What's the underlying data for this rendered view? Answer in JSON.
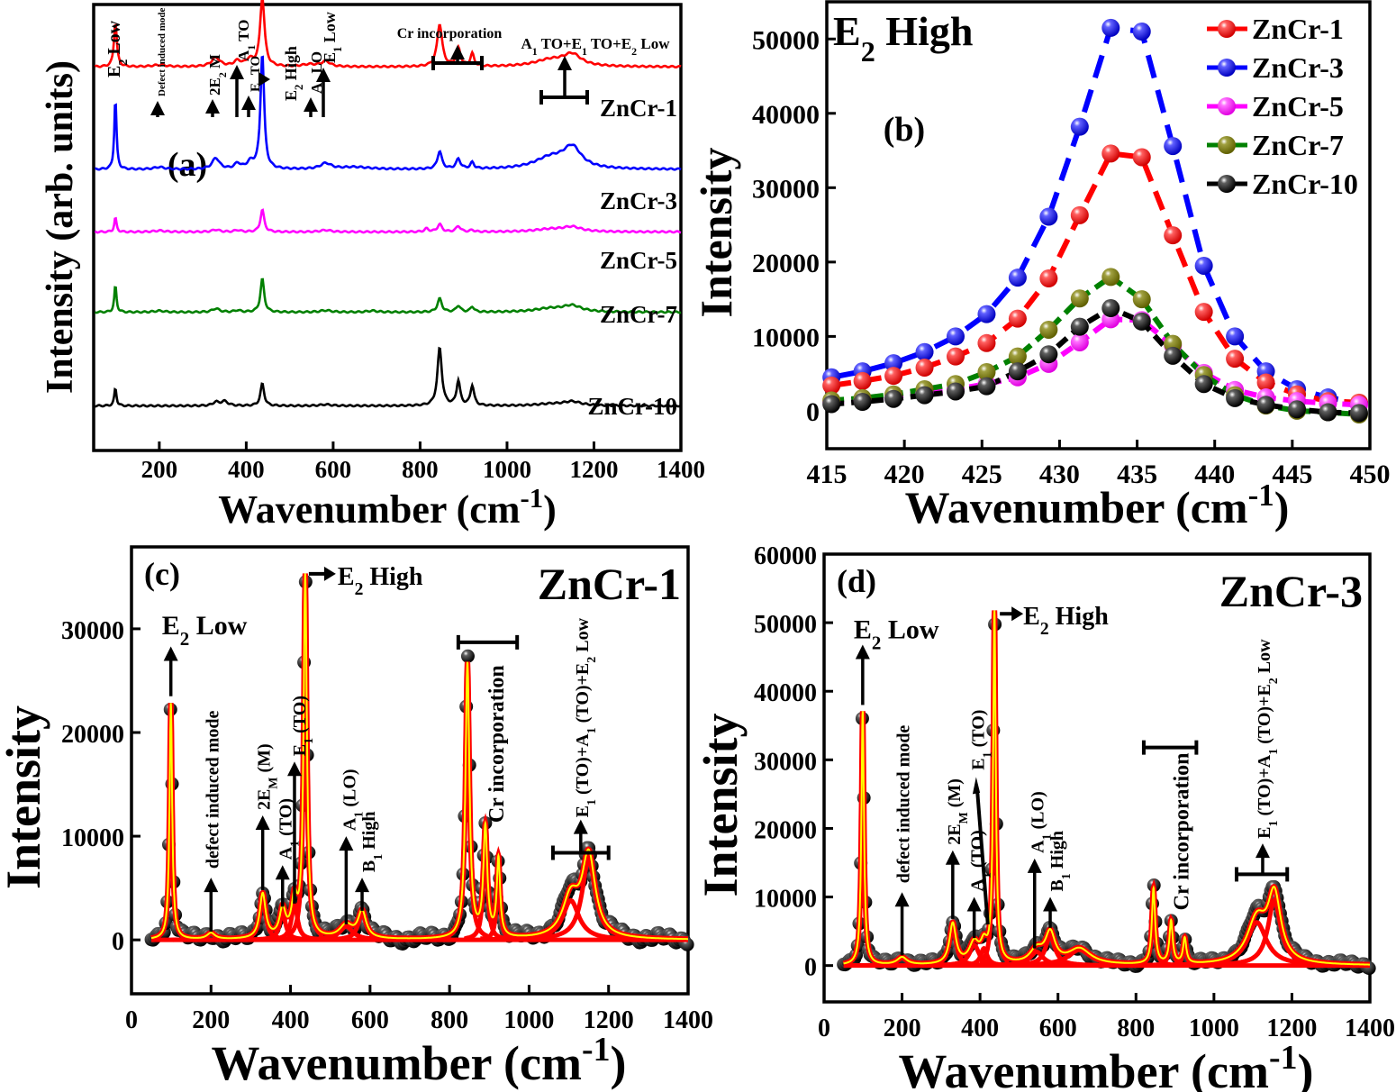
{
  "figure": {
    "description": "Raman spectra of ZnCr samples (four panels a-d)"
  },
  "chart_data": [
    {
      "panel": "(a)",
      "type": "line",
      "title": "",
      "xlabel": "Wavenumber (cm",
      "xlabel_sup": "-1",
      "xlabel_end": ")",
      "ylabel": "Intensity (arb. units)",
      "xlim": [
        49,
        1400
      ],
      "xticks": [
        200,
        400,
        600,
        800,
        1000,
        1200,
        1400
      ],
      "stacked_offsets": true,
      "series": [
        {
          "name": "ZnCr-1",
          "color": "#ff0000",
          "offset": 0.86,
          "peaks": [
            [
              99,
              0.1,
              4
            ],
            [
              200,
              0.004,
              20
            ],
            [
              330,
              0.02,
              12
            ],
            [
              380,
              0.012,
              10
            ],
            [
              408,
              0.015,
              10
            ],
            [
              437,
              0.155,
              6
            ],
            [
              545,
              0.005,
              20
            ],
            [
              583,
              0.012,
              12
            ],
            [
              845,
              0.095,
              7
            ],
            [
              888,
              0.04,
              6
            ],
            [
              920,
              0.028,
              5
            ],
            [
              1100,
              0.015,
              45
            ],
            [
              1150,
              0.025,
              25
            ]
          ]
        },
        {
          "name": "ZnCr-3",
          "color": "#0000ff",
          "offset": 0.63,
          "peaks": [
            [
              99,
              0.16,
              3
            ],
            [
              200,
              0.005,
              15
            ],
            [
              330,
              0.025,
              10
            ],
            [
              380,
              0.012,
              8
            ],
            [
              410,
              0.015,
              10
            ],
            [
              437,
              0.26,
              5
            ],
            [
              583,
              0.013,
              15
            ],
            [
              650,
              0.005,
              40
            ],
            [
              845,
              0.04,
              6
            ],
            [
              888,
              0.022,
              6
            ],
            [
              920,
              0.014,
              5
            ],
            [
              1100,
              0.025,
              45
            ],
            [
              1150,
              0.045,
              25
            ]
          ]
        },
        {
          "name": "ZnCr-5",
          "color": "#ff00ff",
          "offset": 0.49,
          "peaks": [
            [
              99,
              0.032,
              3
            ],
            [
              200,
              0.003,
              15
            ],
            [
              330,
              0.005,
              10
            ],
            [
              380,
              0.004,
              8
            ],
            [
              437,
              0.05,
              5
            ],
            [
              583,
              0.004,
              15
            ],
            [
              815,
              0.007,
              6
            ],
            [
              845,
              0.017,
              6
            ],
            [
              888,
              0.013,
              6
            ],
            [
              920,
              0.004,
              5
            ],
            [
              1100,
              0.006,
              45
            ],
            [
              1150,
              0.01,
              25
            ]
          ]
        },
        {
          "name": "ZnCr-7",
          "color": "#008000",
          "offset": 0.31,
          "peaks": [
            [
              99,
              0.06,
              3
            ],
            [
              200,
              0.003,
              15
            ],
            [
              330,
              0.008,
              10
            ],
            [
              380,
              0.004,
              8
            ],
            [
              437,
              0.075,
              5
            ],
            [
              583,
              0.004,
              15
            ],
            [
              690,
              0.003,
              15
            ],
            [
              845,
              0.03,
              6
            ],
            [
              888,
              0.014,
              6
            ],
            [
              920,
              0.012,
              5
            ],
            [
              1100,
              0.008,
              45
            ],
            [
              1150,
              0.013,
              25
            ]
          ]
        },
        {
          "name": "ZnCr-10",
          "color": "#000000",
          "offset": 0.1,
          "peaks": [
            [
              99,
              0.04,
              3
            ],
            [
              330,
              0.008,
              8
            ],
            [
              350,
              0.01,
              10
            ],
            [
              437,
              0.05,
              5
            ],
            [
              583,
              0.003,
              15
            ],
            [
              845,
              0.13,
              6
            ],
            [
              888,
              0.055,
              5
            ],
            [
              920,
              0.045,
              5
            ],
            [
              1100,
              0.004,
              40
            ],
            [
              1150,
              0.009,
              25
            ]
          ]
        }
      ],
      "series_labels": [
        "ZnCr-1",
        "ZnCr-3",
        "ZnCr-5",
        "ZnCr-7",
        "ZnCr-10"
      ],
      "annotations": [
        {
          "text": "E",
          "sub": "2",
          "rest": " Low",
          "x": 99,
          "vertical": true
        },
        {
          "text": "Defect induced mode",
          "x": 200,
          "vertical": true
        },
        {
          "text": "2E",
          "sub": "2",
          "rest": " M",
          "x": 330,
          "vertical": true
        },
        {
          "text": "A",
          "sub": "1",
          "rest": " TO",
          "x": 380,
          "vertical": true
        },
        {
          "text": "E",
          "sub": "1",
          "rest": " TO",
          "x": 410,
          "vertical": true
        },
        {
          "text": "E",
          "sub": "2",
          "rest": " High",
          "x": 470,
          "vertical": true
        },
        {
          "text": "A",
          "sub": "1",
          "rest": " LO",
          "x": 545,
          "vertical": true
        },
        {
          "text": "E",
          "sub": "1",
          "rest": " Low",
          "x": 583,
          "vertical": true
        },
        {
          "text": "Cr incorporation",
          "x": 880,
          "vertical": false
        },
        {
          "text": "A",
          "sub": "1",
          "rest": " TO+E",
          "sub2": "1",
          "rest2": " TO+E",
          "sub3": "2",
          "rest3": " Low",
          "x": 1150,
          "vertical": false
        }
      ],
      "panel_label": "(a)"
    },
    {
      "panel": "(b)",
      "type": "line",
      "title": "E",
      "title_sub": "2",
      "title_rest": " High",
      "xlabel": "Wavenumber (cm",
      "xlabel_sup": "-1",
      "xlabel_end": ")",
      "ylabel": "Intensity",
      "xlim": [
        415,
        450
      ],
      "ylim": [
        -5100,
        55000
      ],
      "xticks": [
        415,
        420,
        425,
        430,
        435,
        440,
        445,
        450
      ],
      "yticks": [
        0,
        10000,
        20000,
        30000,
        40000,
        50000
      ],
      "legend": "top-right",
      "x": [
        415.3,
        417.3,
        419.3,
        421.3,
        423.3,
        425.3,
        427.3,
        429.3,
        431.3,
        433.3,
        435.3,
        437.3,
        439.3,
        441.3,
        443.3,
        445.3,
        447.3,
        449.3
      ],
      "series": [
        {
          "name": "ZnCr-1",
          "line": "#ff0000",
          "marker": "#ff0000",
          "values": [
            3400,
            4000,
            4700,
            5800,
            7300,
            9100,
            12400,
            17800,
            26300,
            34600,
            34100,
            23600,
            13300,
            7000,
            3800,
            2200,
            1300,
            1100
          ]
        },
        {
          "name": "ZnCr-3",
          "line": "#0000ff",
          "marker": "#0000ff",
          "values": [
            4500,
            5300,
            6400,
            7900,
            10000,
            13000,
            17900,
            26100,
            38200,
            51500,
            51000,
            35600,
            19500,
            10000,
            5300,
            2900,
            1800,
            1000
          ]
        },
        {
          "name": "ZnCr-5",
          "line": "#ff00ff",
          "marker": "#ff00ff",
          "values": [
            1200,
            1500,
            1900,
            2400,
            2900,
            3600,
            4500,
            6300,
            9200,
            12300,
            12200,
            8800,
            5100,
            2800,
            1800,
            1300,
            1000,
            800
          ]
        },
        {
          "name": "ZnCr-7",
          "line": "#008000",
          "marker": "#808000",
          "values": [
            1400,
            1700,
            2200,
            2900,
            3600,
            5200,
            7300,
            10900,
            15100,
            18000,
            15000,
            9000,
            4800,
            2100,
            700,
            0,
            -200,
            -500
          ]
        },
        {
          "name": "ZnCr-10",
          "line": "#000000",
          "marker": "#000000",
          "values": [
            900,
            1200,
            1600,
            2100,
            2600,
            3300,
            5300,
            7600,
            11300,
            13800,
            12000,
            7400,
            3600,
            1700,
            800,
            200,
            -200,
            -300
          ]
        }
      ],
      "panel_label": "(b)"
    },
    {
      "panel": "(c)",
      "type": "line",
      "title": "ZnCr-1",
      "xlabel": "Wavenumber (cm",
      "xlabel_sup": "-1",
      "xlabel_end": ")",
      "ylabel": "Intensity",
      "xlim": [
        0,
        1400
      ],
      "ylim": [
        -5200,
        37900
      ],
      "xticks": [
        0,
        200,
        400,
        600,
        800,
        1000,
        1200,
        1400
      ],
      "yticks": [
        0,
        10000,
        20000,
        30000
      ],
      "series": [
        {
          "name": "Experimental",
          "color": "#000000",
          "style": "markers"
        },
        {
          "name": "Fitted components",
          "color": "#ff0000",
          "style": "line"
        },
        {
          "name": "Cumulative fit",
          "color": "#ffff00",
          "style": "line"
        }
      ],
      "peaks": [
        [
          99,
          22800,
          4
        ],
        [
          200,
          600,
          12
        ],
        [
          330,
          4300,
          9
        ],
        [
          380,
          2700,
          9
        ],
        [
          410,
          3500,
          9
        ],
        [
          437,
          34800,
          5
        ],
        [
          540,
          1300,
          20
        ],
        [
          580,
          2600,
          12
        ],
        [
          845,
          26500,
          6
        ],
        [
          890,
          10500,
          6
        ],
        [
          923,
          7500,
          5
        ],
        [
          1105,
          3800,
          25
        ],
        [
          1150,
          7800,
          20
        ]
      ],
      "annotations": [
        {
          "text": "E",
          "sub": "2",
          "rest": " Low",
          "x": 99
        },
        {
          "text": "defect induced mode",
          "x": 200,
          "vertical": true
        },
        {
          "text": "2E",
          "sub": "M",
          "rest": " (M)",
          "x": 330,
          "vertical": true
        },
        {
          "text": "A",
          "sub": "1",
          "rest": " (TO)",
          "x": 380,
          "vertical": true
        },
        {
          "text": "E",
          "sub": "1",
          "rest": " (TO)",
          "x": 410,
          "vertical": true
        },
        {
          "text": "E",
          "sub": "2",
          "rest": " High",
          "x": 437
        },
        {
          "text": "A",
          "sub": "1",
          "rest": " (LO)",
          "x": 540,
          "vertical": true
        },
        {
          "text": "B",
          "sub": "1",
          "rest": " High",
          "x": 580,
          "vertical": true
        },
        {
          "text": "Cr incorporation",
          "x": 890,
          "vertical": true
        },
        {
          "text": "E",
          "sub": "1",
          "rest": " (TO)+A",
          "sub2": "1",
          "rest2": " (TO)+E",
          "sub3": "2",
          "rest3": " Low",
          "x": 1130,
          "vertical": true
        }
      ],
      "panel_label": "(c)"
    },
    {
      "panel": "(d)",
      "type": "line",
      "title": "ZnCr-3",
      "xlabel": "Wavenumber (cm",
      "xlabel_sup": "-1",
      "xlabel_end": ")",
      "ylabel": "Intensity",
      "xlim": [
        0,
        1400
      ],
      "ylim": [
        -5300,
        60000
      ],
      "xticks": [
        0,
        200,
        400,
        600,
        800,
        1000,
        1200,
        1400
      ],
      "yticks": [
        0,
        10000,
        20000,
        30000,
        40000,
        50000,
        60000
      ],
      "series": [
        {
          "name": "Experimental",
          "color": "#000000",
          "style": "markers"
        },
        {
          "name": "Fitted components",
          "color": "#ff0000",
          "style": "line"
        },
        {
          "name": "Cumulative fit",
          "color": "#ffff00",
          "style": "line"
        }
      ],
      "peaks": [
        [
          99,
          37000,
          4
        ],
        [
          200,
          1100,
          15
        ],
        [
          330,
          5900,
          10
        ],
        [
          385,
          3000,
          15
        ],
        [
          410,
          2500,
          10
        ],
        [
          437,
          51000,
          4
        ],
        [
          545,
          2000,
          20
        ],
        [
          580,
          4300,
          15
        ],
        [
          655,
          2300,
          35
        ],
        [
          845,
          11000,
          5
        ],
        [
          890,
          6200,
          5
        ],
        [
          925,
          3700,
          5
        ],
        [
          1110,
          6300,
          30
        ],
        [
          1155,
          9500,
          20
        ]
      ],
      "annotations": [
        {
          "text": "E",
          "sub": "2",
          "rest": " Low",
          "x": 99
        },
        {
          "text": "defect induced mode",
          "x": 200,
          "vertical": true
        },
        {
          "text": "2E",
          "sub": "M",
          "rest": " (M)",
          "x": 330,
          "vertical": true
        },
        {
          "text": "A",
          "sub": "1",
          "rest": " (TO)",
          "x": 385,
          "vertical": true
        },
        {
          "text": "E",
          "sub": "1",
          "rest": " (TO)",
          "x": 410,
          "vertical": true
        },
        {
          "text": "E",
          "sub": "2",
          "rest": " High",
          "x": 437
        },
        {
          "text": "A",
          "sub": "1",
          "rest": " (LO)",
          "x": 540,
          "vertical": true
        },
        {
          "text": "B",
          "sub": "1",
          "rest": " High",
          "x": 580,
          "vertical": true
        },
        {
          "text": "Cr incorporation",
          "x": 890,
          "vertical": true
        },
        {
          "text": "E",
          "sub": "1",
          "rest": " (TO)+A",
          "sub2": "1",
          "rest2": " (TO)+E",
          "sub3": "2",
          "rest3": " Low",
          "x": 1130,
          "vertical": true
        }
      ],
      "panel_label": "(d)"
    }
  ]
}
